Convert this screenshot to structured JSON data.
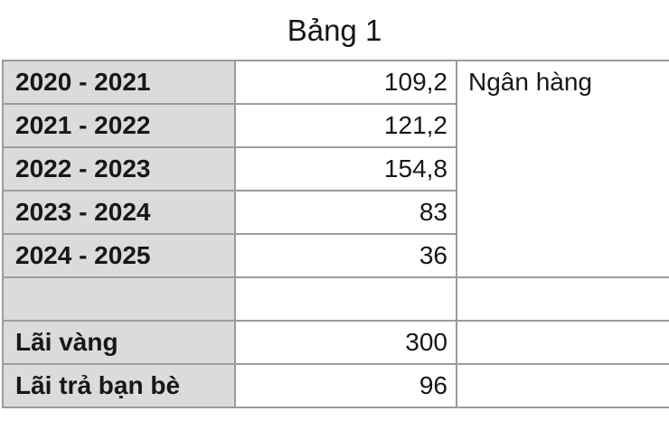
{
  "title": "Bảng 1",
  "table": {
    "side_note": "Ngân hàng",
    "rows": [
      {
        "label": "2020 - 2021",
        "value": "109,2"
      },
      {
        "label": "2021 - 2022",
        "value": "121,2"
      },
      {
        "label": "2022 - 2023",
        "value": "154,8"
      },
      {
        "label": "2023 - 2024",
        "value": "83"
      },
      {
        "label": "2024 - 2025",
        "value": "36"
      },
      {
        "label": "",
        "value": ""
      },
      {
        "label": "Lãi vàng",
        "value": "300"
      },
      {
        "label": "Lãi trả bạn bè",
        "value": "96"
      }
    ]
  },
  "colors": {
    "background": "#ffffff",
    "label_column_bg": "#dbdbdb",
    "grid_line": "#9c9c9c",
    "column_divider": "#3b3b3b",
    "text": "#161616"
  }
}
